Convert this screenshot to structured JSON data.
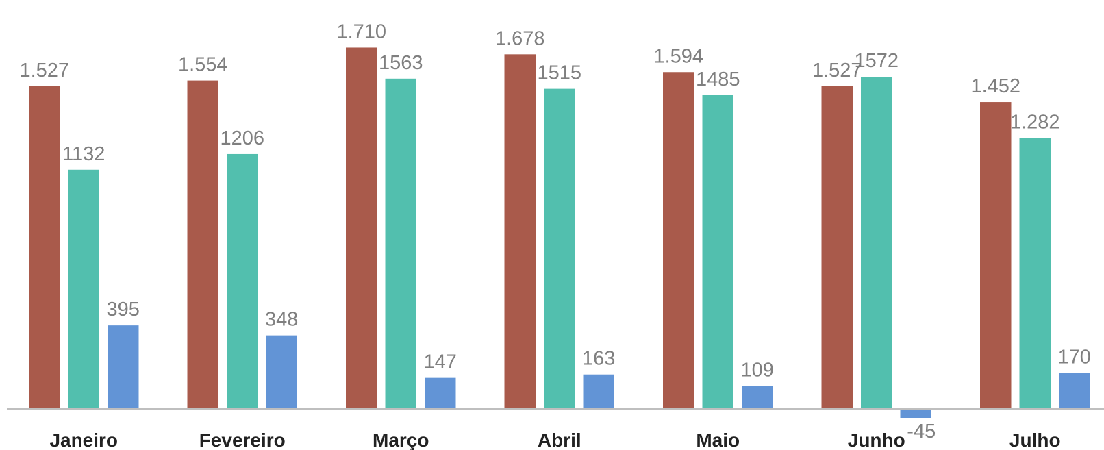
{
  "chart_data": {
    "type": "bar",
    "categories": [
      "Janeiro",
      "Fevereiro",
      "Março",
      "Abril",
      "Maio",
      "Junho",
      "Julho"
    ],
    "series": [
      {
        "color": "#a95a4b",
        "values": [
          1527,
          1554,
          1710,
          1678,
          1594,
          1527,
          1452
        ],
        "labels": [
          "1.527",
          "1.554",
          "1.710",
          "1.678",
          "1.594",
          "1.527",
          "1.452"
        ]
      },
      {
        "color": "#52bfae",
        "values": [
          1132,
          1206,
          1563,
          1515,
          1485,
          1572,
          1282
        ],
        "labels": [
          "1132",
          "1206",
          "1563",
          "1515",
          "1485",
          "1572",
          "1.282"
        ]
      },
      {
        "color": "#6294d6",
        "values": [
          395,
          348,
          147,
          163,
          109,
          -45,
          170
        ],
        "labels": [
          "395",
          "348",
          "147",
          "163",
          "109",
          "-45",
          "170"
        ]
      }
    ],
    "ylim": [
      -85,
      1790
    ],
    "grid": false,
    "legend": "none",
    "axis_color": "#bfbfbf"
  }
}
